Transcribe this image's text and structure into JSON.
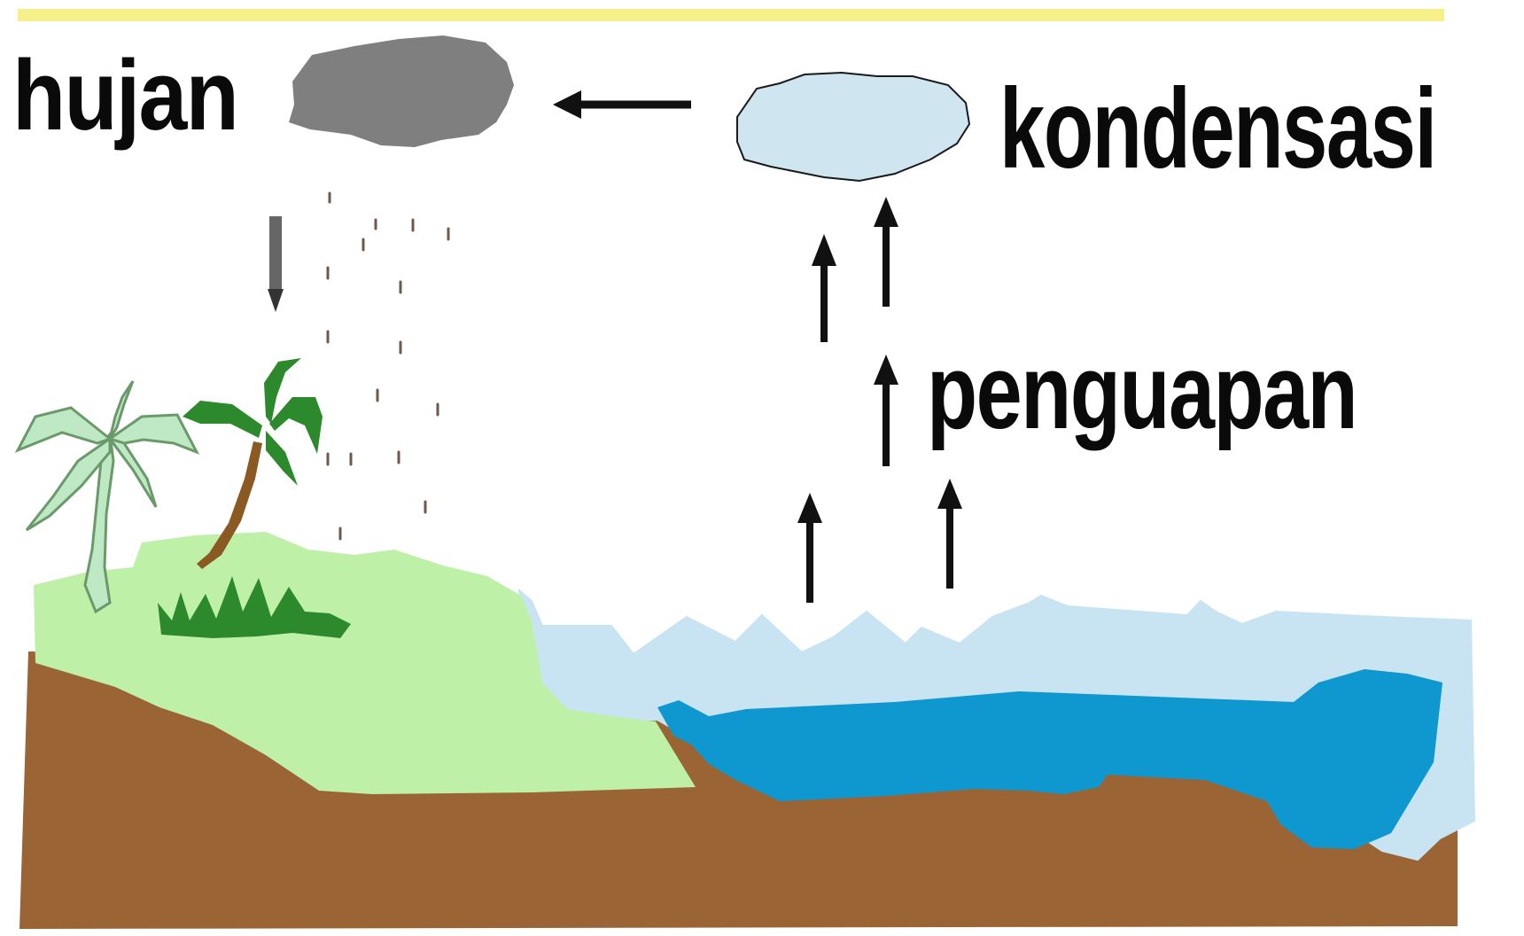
{
  "labels": {
    "hujan": "hujan",
    "kondensasi": "kondensasi",
    "penguapan": "penguapan"
  },
  "colors": {
    "top_line": "#f6f08a",
    "rain_cloud": "#7f7f7f",
    "condensation_cloud": "#cfe6f1",
    "cloud_outline": "#1a1a1a",
    "land_grass": "#bff0a8",
    "soil": "#9a6434",
    "sea_light": "#c8e4f2",
    "sea_deep": "#0f97cf",
    "tree_dark": "#2c8a2c",
    "tree_light": "#bfe8c4",
    "trunk": "#8a5a22",
    "arrow": "#111111",
    "rain_drop": "#6e5a4a"
  },
  "icons": {
    "rain_cloud": "rain-cloud-icon",
    "condensation_cloud": "condensation-cloud-icon",
    "palm_tree": "palm-tree-icon",
    "grass": "grass-icon"
  }
}
